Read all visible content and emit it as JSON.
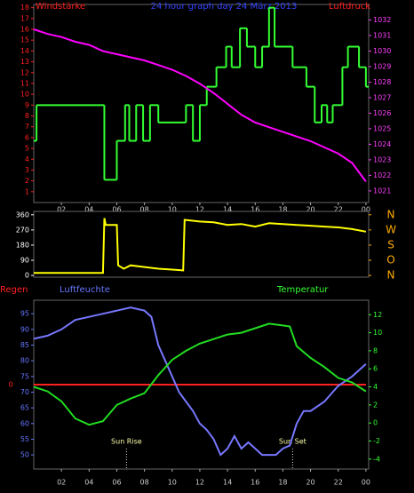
{
  "chart_data": [
    {
      "type": "line",
      "title": "24 hour graph day  24 März 2013",
      "ylabel": "Windstärke",
      "y2label": "Luftdruck",
      "title_color": "#3344ff",
      "ylabel_color": "#ff2020",
      "y2label_color": "#ff2020",
      "ytick_color": "#ff2020",
      "y2tick_color": "#ff40ff",
      "xlim": [
        0,
        24.2
      ],
      "ylim": [
        0,
        18.3
      ],
      "y2lim": [
        1020.25,
        1033
      ],
      "xticks": [
        {
          "value": 2,
          "label": "02"
        },
        {
          "value": 4,
          "label": "04"
        },
        {
          "value": 6,
          "label": "06"
        },
        {
          "value": 8,
          "label": "08"
        },
        {
          "value": 10,
          "label": "10"
        },
        12,
        14,
        16,
        18,
        20,
        22,
        {
          "value": 24,
          "label": "00"
        }
      ],
      "yticks": [
        1,
        2,
        3,
        4,
        5,
        6,
        7,
        8,
        9,
        10,
        11,
        12,
        13,
        14,
        15,
        16,
        17,
        18
      ],
      "y2ticks": [
        1021,
        1022,
        1023,
        1024,
        1025,
        1026,
        1027,
        1028,
        1029,
        1030,
        1031,
        1032
      ],
      "series": [
        {
          "color": "#33ff33",
          "step": true,
          "x": [
            0,
            0.2,
            5.1,
            6.0,
            6.6,
            6.9,
            7.4,
            7.9,
            8.4,
            9.0,
            11.0,
            11.5,
            12.0,
            12.5,
            13.2,
            13.9,
            14.3,
            14.9,
            15.4,
            16.0,
            16.5,
            17.0,
            17.4,
            18.7,
            19.7,
            20.3,
            20.8,
            21.2,
            21.6,
            22.3,
            22.7,
            23.5,
            24
          ],
          "values": [
            5.7,
            9,
            2.1,
            5.7,
            9,
            5.7,
            9,
            5.7,
            9,
            7.4,
            9,
            5.7,
            9,
            10.7,
            12.5,
            14.4,
            12.5,
            16.1,
            14.4,
            12.5,
            14.4,
            18,
            14.4,
            12.5,
            10.7,
            7.4,
            9,
            7.4,
            9,
            12.5,
            14.4,
            12.5,
            10.7
          ]
        },
        {
          "color": "#ff00ff",
          "axis": "y2",
          "x": [
            0,
            1,
            2,
            3,
            4,
            5,
            6,
            7,
            8,
            9,
            10,
            11,
            12,
            13,
            14,
            15,
            16,
            17,
            18,
            19,
            20,
            21,
            22,
            23,
            24
          ],
          "values": [
            1031.4,
            1031.1,
            1030.9,
            1030.6,
            1030.4,
            1030.0,
            1029.8,
            1029.6,
            1029.4,
            1029.1,
            1028.8,
            1028.4,
            1027.9,
            1027.3,
            1026.6,
            1025.9,
            1025.4,
            1025.1,
            1024.8,
            1024.5,
            1024.2,
            1023.8,
            1023.4,
            1022.8,
            1021.6
          ]
        }
      ]
    },
    {
      "type": "line",
      "ytick_color": "#ffffff",
      "y2tick_color": "#ffaa00",
      "xlim": [
        0,
        24.2
      ],
      "ylim": [
        -10,
        380
      ],
      "y2lim": [
        -10,
        380
      ],
      "yticks": [
        0,
        90,
        180,
        270,
        360
      ],
      "y2ticks": [
        {
          "value": 0,
          "label": "N"
        },
        {
          "value": 90,
          "label": "O"
        },
        {
          "value": 180,
          "label": "S"
        },
        {
          "value": 270,
          "label": "W"
        },
        {
          "value": 360,
          "label": "N"
        }
      ],
      "series": [
        {
          "color": "#ffff00",
          "x": [
            0,
            5.0,
            5.1,
            5.2,
            6.0,
            6.1,
            6.5,
            7.0,
            8.0,
            9.0,
            10.0,
            10.8,
            10.9,
            12,
            13,
            14,
            15,
            16,
            17,
            18,
            19,
            20,
            21,
            22,
            23,
            24
          ],
          "values": [
            15,
            15,
            340,
            300,
            300,
            60,
            40,
            60,
            50,
            40,
            35,
            30,
            330,
            320,
            315,
            300,
            305,
            290,
            310,
            305,
            300,
            295,
            290,
            285,
            275,
            260
          ]
        }
      ]
    },
    {
      "type": "line",
      "ylabel": "Luftfeuchte",
      "y2label": "Temperatur",
      "y3label": "Regen",
      "ylabel_color": "#6677ff",
      "y2label_color": "#33ff33",
      "y3label_color": "#ff2020",
      "ytick_color": "#6677ff",
      "y2tick_color": "#33ff33",
      "y3tick_color": "#ff2020",
      "xlim": [
        0,
        24.2
      ],
      "ylim": [
        45.5,
        99.3
      ],
      "y2lim": [
        -5.1,
        13.6
      ],
      "y3lim": [
        -1,
        1
      ],
      "xticks": [
        {
          "value": 2,
          "label": "02"
        },
        {
          "value": 4,
          "label": "04"
        },
        {
          "value": 6,
          "label": "06"
        },
        {
          "value": 8,
          "label": "08"
        },
        {
          "value": 10,
          "label": "10"
        },
        12,
        14,
        16,
        18,
        20,
        22,
        {
          "value": 24,
          "label": "00"
        }
      ],
      "yticks": [
        50,
        55,
        60,
        65,
        70,
        75,
        80,
        85,
        90,
        95
      ],
      "y2ticks": [
        -4,
        -2,
        0,
        2,
        4,
        6,
        8,
        10,
        12
      ],
      "y3ticks": [
        0
      ],
      "annotations": [
        {
          "text": "Sun Rise",
          "x": 6.7
        },
        {
          "text": "Sun Set",
          "x": 18.7
        }
      ],
      "series": [
        {
          "color": "#ff2020",
          "axis": "y3",
          "x": [
            0,
            24
          ],
          "values": [
            0,
            0
          ]
        },
        {
          "color": "#7777ff",
          "x": [
            0,
            1,
            2,
            3,
            4,
            5,
            6,
            7,
            8,
            8.5,
            9,
            9.5,
            10,
            10.5,
            11,
            11.5,
            12,
            12.5,
            13,
            13.5,
            14,
            14.5,
            15,
            15.5,
            16,
            16.5,
            17,
            17.5,
            18,
            18.5,
            19,
            19.5,
            20,
            21,
            22,
            23,
            24
          ],
          "values": [
            87,
            88,
            90,
            93,
            94,
            95,
            96,
            97,
            96,
            94,
            85,
            80,
            75,
            70,
            67,
            64,
            60,
            58,
            55,
            50,
            52,
            56,
            52,
            54,
            52,
            50,
            50,
            50,
            52,
            53,
            60,
            64,
            64,
            67,
            72,
            75,
            79
          ]
        },
        {
          "color": "#22dd22",
          "axis": "y2",
          "x": [
            0,
            1,
            2,
            3,
            4,
            5,
            6,
            7,
            8,
            9,
            10,
            11,
            12,
            13,
            14,
            15,
            16,
            17,
            18,
            18.5,
            19,
            20,
            21,
            22,
            23,
            24
          ],
          "values": [
            4.0,
            3.5,
            2.4,
            0.5,
            -0.2,
            0.2,
            2.0,
            2.7,
            3.3,
            5.3,
            7.0,
            8.0,
            8.8,
            9.3,
            9.8,
            10.0,
            10.5,
            11.0,
            10.8,
            10.7,
            8.5,
            7.2,
            6.2,
            5.0,
            4.5,
            3.5
          ]
        }
      ]
    }
  ]
}
